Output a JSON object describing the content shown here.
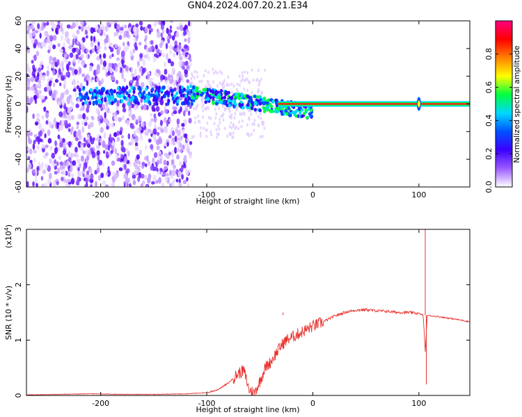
{
  "title": "GN04.2024.007.20.21.E34",
  "chart_data": [
    {
      "type": "heatmap",
      "xlabel": "Height of straight line (km)",
      "ylabel": "Frequency (Hz)",
      "xlim": [
        -270,
        148
      ],
      "ylim": [
        -60,
        60
      ],
      "xticks": [
        -200,
        -100,
        0,
        100
      ],
      "xtick_labels": [
        "-200",
        "-100",
        "0",
        "100"
      ],
      "yticks": [
        -60,
        -40,
        -20,
        0,
        20,
        40,
        60
      ],
      "ytick_labels": [
        "-60",
        "-40",
        "-20",
        "0",
        "20",
        "40",
        "60"
      ],
      "colorbar": {
        "label": "Normalized spectral amplitude",
        "range": [
          0,
          1
        ],
        "ticks": [
          0,
          0.2,
          0.4,
          0.6,
          0.8
        ],
        "tick_labels": [
          "0.0",
          "0.2",
          "0.4",
          "0.6",
          "0.8"
        ],
        "colormap": [
          "#ffffff",
          "#9b5cff",
          "#3b00ff",
          "#0050ff",
          "#00d8ff",
          "#00ff40",
          "#ffff00",
          "#ff8000",
          "#ff0000",
          "#ff0080"
        ]
      },
      "features": {
        "steady_line": {
          "x_from": 0,
          "x_to": 148,
          "freq_hz": 0
        },
        "spike_at_km": 100,
        "noise_region_km": [
          -270,
          -115
        ]
      }
    },
    {
      "type": "line",
      "xlabel": "Height of straight line (km)",
      "ylabel": "SNR (10 * v/v)",
      "multiplier_label": "(x10",
      "multiplier_exp": "4",
      "multiplier_close": ")",
      "xlim": [
        -270,
        148
      ],
      "ylim": [
        0,
        3
      ],
      "xticks": [
        -200,
        -100,
        0,
        100
      ],
      "xtick_labels": [
        "-200",
        "-100",
        "0",
        "100"
      ],
      "yticks": [
        0,
        1,
        2,
        3
      ],
      "ytick_labels": [
        "0",
        "1",
        "2",
        "3"
      ],
      "color": "#e8312e",
      "series": [
        {
          "x": [
            -270,
            -240,
            -210,
            -180,
            -150,
            -120,
            -100,
            -90,
            -80,
            -70,
            -65,
            -60,
            -55,
            -50,
            -45,
            -40,
            -35,
            -30,
            -25,
            -20,
            -15,
            -10,
            -5,
            0,
            10,
            20,
            30,
            40,
            50,
            60,
            70,
            80,
            90,
            100,
            104,
            106,
            108,
            110,
            120,
            130,
            140,
            148
          ],
          "y": [
            0.01,
            0.02,
            0.03,
            0.02,
            0.02,
            0.03,
            0.05,
            0.1,
            0.22,
            0.4,
            0.45,
            0.1,
            0.05,
            0.25,
            0.5,
            0.6,
            0.75,
            0.9,
            1.0,
            1.05,
            1.1,
            1.15,
            1.2,
            1.25,
            1.33,
            1.43,
            1.5,
            1.54,
            1.55,
            1.53,
            1.52,
            1.5,
            1.5,
            1.48,
            1.45,
            0.8,
            1.45,
            1.44,
            1.42,
            1.39,
            1.36,
            1.33
          ]
        }
      ],
      "spikes": [
        {
          "x": -28,
          "y": 1.5
        },
        {
          "x": 106,
          "y": 3.0
        },
        {
          "x": 107,
          "y": 0.2
        }
      ]
    }
  ]
}
